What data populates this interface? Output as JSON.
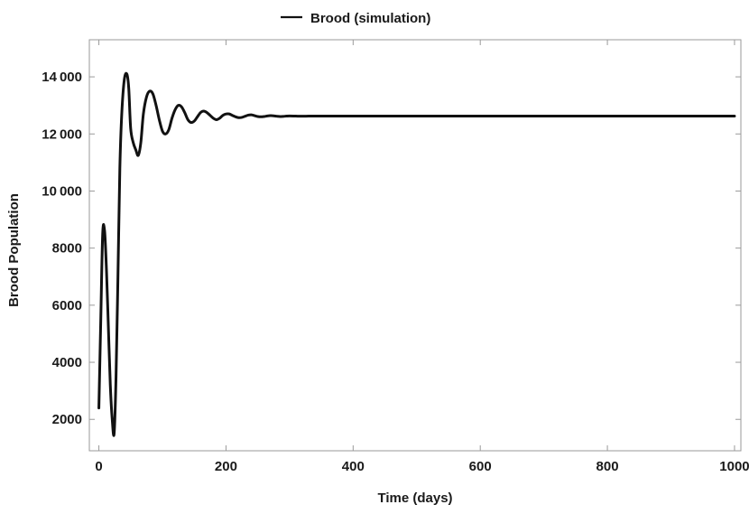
{
  "chart_data": {
    "type": "line",
    "title": "",
    "xlabel": "Time (days)",
    "ylabel": "Brood Population",
    "xlim": [
      -15,
      1010
    ],
    "ylim": [
      900,
      15300
    ],
    "xticks": [
      0,
      200,
      400,
      600,
      800,
      1000
    ],
    "xtick_labels": [
      "0",
      "200",
      "400",
      "600",
      "800",
      "1000"
    ],
    "yticks": [
      2000,
      4000,
      6000,
      8000,
      10000,
      12000,
      14000
    ],
    "ytick_labels": [
      "2000",
      "4000",
      "6000",
      "8000",
      "10 000",
      "12 000",
      "14 000"
    ],
    "grid": false,
    "legend_position": "top-center",
    "line_color": "#111111",
    "series": [
      {
        "name": "Brood (simulation)",
        "x": [
          0,
          3,
          6,
          9,
          12,
          15,
          18,
          21,
          24,
          27,
          30,
          33,
          36,
          40,
          44,
          47,
          50,
          54,
          58,
          62,
          66,
          70,
          75,
          80,
          85,
          90,
          95,
          100,
          105,
          110,
          115,
          120,
          125,
          130,
          135,
          140,
          145,
          150,
          155,
          160,
          165,
          170,
          175,
          180,
          185,
          190,
          195,
          200,
          205,
          210,
          215,
          220,
          225,
          230,
          235,
          240,
          245,
          250,
          255,
          260,
          265,
          270,
          275,
          280,
          285,
          290,
          295,
          300,
          310,
          320,
          330,
          340,
          350,
          360,
          370,
          380,
          400,
          450,
          500,
          600,
          700,
          800,
          900,
          1000
        ],
        "y": [
          2400,
          5500,
          8500,
          8600,
          7200,
          5200,
          3200,
          2000,
          1500,
          3500,
          7000,
          10800,
          12700,
          13900,
          14100,
          13600,
          12200,
          11700,
          11450,
          11250,
          11700,
          12700,
          13300,
          13500,
          13400,
          13000,
          12500,
          12100,
          12000,
          12150,
          12550,
          12850,
          13000,
          12950,
          12750,
          12500,
          12400,
          12450,
          12600,
          12750,
          12800,
          12750,
          12650,
          12550,
          12500,
          12550,
          12650,
          12700,
          12700,
          12650,
          12600,
          12570,
          12580,
          12620,
          12660,
          12670,
          12640,
          12610,
          12600,
          12610,
          12630,
          12640,
          12635,
          12620,
          12610,
          12615,
          12625,
          12630,
          12625,
          12620,
          12625,
          12625,
          12625,
          12625,
          12625,
          12625,
          12625,
          12625,
          12625,
          12625,
          12625,
          12625,
          12625,
          12625
        ]
      }
    ]
  }
}
